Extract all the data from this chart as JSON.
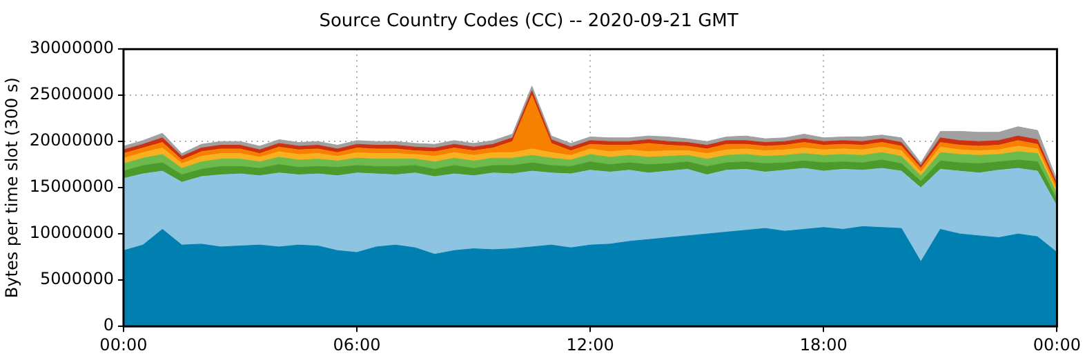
{
  "chart_data": {
    "type": "area",
    "title": "Source Country Codes (CC) -- 2020-09-21 GMT",
    "ylabel": "Bytes per time slot (300 s)",
    "stacked": true,
    "grid": true,
    "legend": false,
    "marker": "none",
    "x": [
      0,
      0.5,
      1,
      1.5,
      2,
      2.5,
      3,
      3.5,
      4,
      4.5,
      5,
      5.5,
      6,
      6.5,
      7,
      7.5,
      8,
      8.5,
      9,
      9.5,
      10,
      10.5,
      11,
      11.5,
      12,
      12.5,
      13,
      13.5,
      14,
      14.5,
      15,
      15.5,
      16,
      16.5,
      17,
      17.5,
      18,
      18.5,
      19,
      19.5,
      20,
      20.5,
      21,
      21.5,
      22,
      22.5,
      23,
      23.5,
      24
    ],
    "xlim": [
      0,
      24
    ],
    "xticks": [
      {
        "value": 0,
        "label": "00:00"
      },
      {
        "value": 6,
        "label": "06:00"
      },
      {
        "value": 12,
        "label": "12:00"
      },
      {
        "value": 18,
        "label": "18:00"
      },
      {
        "value": 24,
        "label": "00:00"
      }
    ],
    "ylim": [
      0,
      30000000
    ],
    "yticks": [
      0,
      5000000,
      10000000,
      15000000,
      20000000,
      25000000,
      30000000
    ],
    "series": [
      {
        "color": "#0080b0",
        "values": [
          8200000,
          8800000,
          10500000,
          8800000,
          8900000,
          8600000,
          8700000,
          8800000,
          8600000,
          8800000,
          8700000,
          8200000,
          8000000,
          8600000,
          8800000,
          8500000,
          7800000,
          8200000,
          8400000,
          8300000,
          8400000,
          8600000,
          8800000,
          8500000,
          8800000,
          8900000,
          9200000,
          9400000,
          9600000,
          9800000,
          10000000,
          10200000,
          10400000,
          10600000,
          10300000,
          10500000,
          10700000,
          10500000,
          10800000,
          10700000,
          10600000,
          7000000,
          10500000,
          10000000,
          9800000,
          9600000,
          10000000,
          9700000,
          8000000
        ]
      },
      {
        "color": "#8cc4e2",
        "values": [
          7800000,
          7700000,
          6300000,
          6800000,
          7300000,
          7800000,
          7800000,
          7500000,
          8000000,
          7600000,
          7800000,
          8100000,
          8600000,
          7900000,
          7600000,
          8100000,
          8400000,
          8300000,
          7900000,
          8300000,
          8100000,
          8200000,
          7800000,
          8000000,
          8100000,
          7800000,
          7700000,
          7200000,
          7200000,
          7200000,
          6400000,
          6700000,
          6600000,
          6100000,
          6600000,
          6600000,
          6100000,
          6500000,
          6100000,
          6400000,
          6200000,
          8000000,
          6500000,
          6800000,
          6800000,
          7300000,
          7100000,
          7100000,
          5000000
        ]
      },
      {
        "color": "#4a9a2c",
        "values": [
          800000,
          900000,
          900000,
          800000,
          800000,
          900000,
          800000,
          800000,
          900000,
          800000,
          800000,
          900000,
          800000,
          800000,
          900000,
          800000,
          800000,
          900000,
          800000,
          800000,
          900000,
          900000,
          800000,
          800000,
          900000,
          800000,
          800000,
          900000,
          800000,
          800000,
          900000,
          800000,
          800000,
          900000,
          800000,
          800000,
          900000,
          800000,
          800000,
          900000,
          800000,
          700000,
          900000,
          900000,
          1000000,
          900000,
          900000,
          1000000,
          700000
        ]
      },
      {
        "color": "#6cba4c",
        "values": [
          800000,
          800000,
          900000,
          700000,
          800000,
          800000,
          800000,
          700000,
          800000,
          800000,
          800000,
          700000,
          800000,
          800000,
          800000,
          700000,
          800000,
          800000,
          800000,
          800000,
          800000,
          800000,
          800000,
          700000,
          800000,
          800000,
          800000,
          800000,
          800000,
          700000,
          800000,
          800000,
          800000,
          800000,
          800000,
          800000,
          800000,
          800000,
          800000,
          800000,
          800000,
          600000,
          900000,
          900000,
          900000,
          800000,
          900000,
          900000,
          600000
        ]
      },
      {
        "color": "#f8b020",
        "values": [
          600000,
          600000,
          700000,
          500000,
          600000,
          600000,
          600000,
          500000,
          600000,
          600000,
          600000,
          500000,
          600000,
          600000,
          600000,
          500000,
          600000,
          600000,
          600000,
          600000,
          600000,
          700000,
          600000,
          500000,
          600000,
          600000,
          600000,
          600000,
          600000,
          500000,
          600000,
          600000,
          600000,
          600000,
          600000,
          600000,
          600000,
          600000,
          600000,
          600000,
          600000,
          400000,
          600000,
          500000,
          500000,
          500000,
          600000,
          500000,
          400000
        ]
      },
      {
        "color": "#f88000",
        "values": [
          500000,
          500000,
          600000,
          400000,
          500000,
          500000,
          500000,
          400000,
          500000,
          500000,
          500000,
          400000,
          500000,
          500000,
          500000,
          400000,
          500000,
          500000,
          500000,
          500000,
          1200000,
          5800000,
          1000000,
          500000,
          500000,
          700000,
          500000,
          900000,
          600000,
          500000,
          500000,
          600000,
          500000,
          500000,
          500000,
          600000,
          500000,
          500000,
          500000,
          500000,
          500000,
          400000,
          500000,
          500000,
          500000,
          500000,
          600000,
          500000,
          400000
        ]
      },
      {
        "color": "#cc3010",
        "values": [
          400000,
          400000,
          500000,
          400000,
          400000,
          400000,
          400000,
          400000,
          400000,
          400000,
          400000,
          400000,
          400000,
          400000,
          400000,
          400000,
          400000,
          400000,
          400000,
          400000,
          400000,
          500000,
          400000,
          400000,
          400000,
          400000,
          400000,
          400000,
          400000,
          400000,
          400000,
          400000,
          400000,
          400000,
          400000,
          400000,
          400000,
          400000,
          400000,
          400000,
          400000,
          300000,
          500000,
          500000,
          500000,
          500000,
          500000,
          500000,
          300000
        ]
      },
      {
        "color": "#a0a0a0",
        "values": [
          400000,
          400000,
          500000,
          300000,
          400000,
          400000,
          400000,
          400000,
          400000,
          400000,
          400000,
          400000,
          400000,
          400000,
          400000,
          400000,
          400000,
          400000,
          400000,
          400000,
          400000,
          500000,
          400000,
          400000,
          400000,
          400000,
          400000,
          400000,
          500000,
          400000,
          400000,
          400000,
          500000,
          400000,
          400000,
          500000,
          400000,
          400000,
          500000,
          400000,
          500000,
          300000,
          700000,
          1000000,
          1000000,
          900000,
          1000000,
          1000000,
          400000
        ]
      }
    ]
  }
}
